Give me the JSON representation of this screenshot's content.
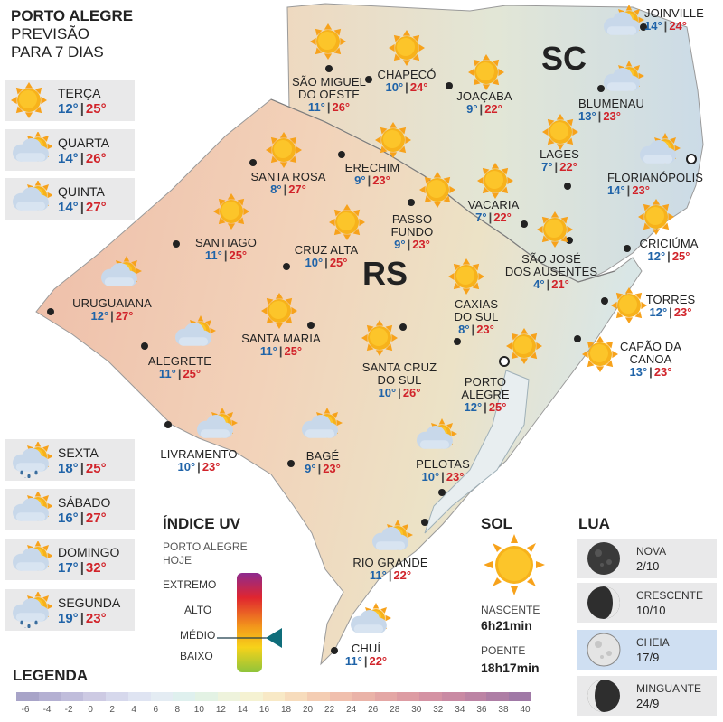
{
  "header": {
    "line1": "PORTO ALEGRE",
    "line2": "PREVISÃO",
    "line3": "PARA 7 DIAS"
  },
  "map_labels": {
    "state_rs": "RS",
    "state_sc": "SC"
  },
  "forecast": [
    {
      "day": "TERÇA",
      "min": "12°",
      "max": "25°",
      "icon": "sun"
    },
    {
      "day": "QUARTA",
      "min": "14°",
      "max": "26°",
      "icon": "sun-cloud"
    },
    {
      "day": "QUINTA",
      "min": "14°",
      "max": "27°",
      "icon": "sun-cloud"
    },
    {
      "day": "SEXTA",
      "min": "18°",
      "max": "25°",
      "icon": "sun-cloud-rain"
    },
    {
      "day": "SÁBADO",
      "min": "16°",
      "max": "27°",
      "icon": "sun-cloud"
    },
    {
      "day": "DOMINGO",
      "min": "17°",
      "max": "32°",
      "icon": "sun-cloud"
    },
    {
      "day": "SEGUNDA",
      "min": "19°",
      "max": "23°",
      "icon": "sun-cloud-rain"
    }
  ],
  "cities": [
    {
      "name": "JOINVILLE",
      "min": "14°",
      "max": "24°",
      "icon": "sun-cloud"
    },
    {
      "name": "BLUMENAU",
      "min": "13°",
      "max": "23°",
      "icon": "sun-cloud"
    },
    {
      "name": "FLORIANÓPOLIS",
      "min": "14°",
      "max": "23°",
      "icon": "sun-cloud"
    },
    {
      "name": "SÃO MIGUEL DO OESTE",
      "line1": "SÃO MIGUEL",
      "line2": "DO OESTE",
      "min": "11°",
      "max": "26°",
      "icon": "sun"
    },
    {
      "name": "CHAPECÓ",
      "min": "10°",
      "max": "24°",
      "icon": "sun"
    },
    {
      "name": "JOAÇABA",
      "min": "9°",
      "max": "22°",
      "icon": "sun"
    },
    {
      "name": "LAGES",
      "min": "7°",
      "max": "22°",
      "icon": "sun"
    },
    {
      "name": "SANTA ROSA",
      "min": "8°",
      "max": "27°",
      "icon": "sun"
    },
    {
      "name": "ERECHIM",
      "min": "9°",
      "max": "23°",
      "icon": "sun"
    },
    {
      "name": "VACARIA",
      "min": "7°",
      "max": "22°",
      "icon": "sun"
    },
    {
      "name": "PASSO FUNDO",
      "line1": "PASSO",
      "line2": "FUNDO",
      "min": "9°",
      "max": "23°",
      "icon": "sun"
    },
    {
      "name": "SANTIAGO",
      "min": "11°",
      "max": "25°",
      "icon": "sun"
    },
    {
      "name": "CRUZ ALTA",
      "min": "10°",
      "max": "25°",
      "icon": "sun"
    },
    {
      "name": "SÃO JOSÉ DOS AUSENTES",
      "line1": "SÃO JOSÉ",
      "line2": "DOS AUSENTES",
      "min": "4°",
      "max": "21°",
      "icon": "sun"
    },
    {
      "name": "CRICIÚMA",
      "min": "12°",
      "max": "25°",
      "icon": "sun"
    },
    {
      "name": "URUGUAIANA",
      "min": "12°",
      "max": "27°",
      "icon": "sun-cloud"
    },
    {
      "name": "CAXIAS DO SUL",
      "line1": "CAXIAS",
      "line2": "DO SUL",
      "min": "8°",
      "max": "23°",
      "icon": "sun"
    },
    {
      "name": "TORRES",
      "min": "12°",
      "max": "23°",
      "icon": "sun"
    },
    {
      "name": "SANTA MARIA",
      "min": "11°",
      "max": "25°",
      "icon": "sun"
    },
    {
      "name": "ALEGRETE",
      "min": "11°",
      "max": "25°",
      "icon": "sun-cloud"
    },
    {
      "name": "SANTA CRUZ DO SUL",
      "line1": "SANTA CRUZ",
      "line2": "DO SUL",
      "min": "10°",
      "max": "26°",
      "icon": "sun"
    },
    {
      "name": "PORTO ALEGRE",
      "line1": "PORTO",
      "line2": "ALEGRE",
      "min": "12°",
      "max": "25°",
      "icon": "sun"
    },
    {
      "name": "CAPÃO DA CANOA",
      "line1": "CAPÃO DA",
      "line2": "CANOA",
      "min": "13°",
      "max": "23°",
      "icon": "sun"
    },
    {
      "name": "LIVRAMENTO",
      "min": "10°",
      "max": "23°",
      "icon": "sun-cloud"
    },
    {
      "name": "BAGÉ",
      "min": "9°",
      "max": "23°",
      "icon": "sun-cloud"
    },
    {
      "name": "PELOTAS",
      "min": "10°",
      "max": "23°",
      "icon": "sun-cloud"
    },
    {
      "name": "RIO GRANDE",
      "min": "11°",
      "max": "22°",
      "icon": "sun-cloud"
    },
    {
      "name": "CHUÍ",
      "min": "11°",
      "max": "22°",
      "icon": "sun-cloud"
    }
  ],
  "uv": {
    "title": "ÍNDICE UV",
    "subtitle1": "PORTO ALEGRE",
    "subtitle2": "HOJE",
    "levels": [
      "EXTREMO",
      "ALTO",
      "MÉDIO",
      "BAIXO"
    ],
    "current_level": "MÉDIO"
  },
  "sun": {
    "title": "SOL",
    "sunrise_label": "NASCENTE",
    "sunrise_value": "6h21min",
    "sunset_label": "POENTE",
    "sunset_value": "18h17min"
  },
  "moon": {
    "title": "LUA",
    "phases": [
      {
        "name": "NOVA",
        "date": "2/10",
        "phase": "new",
        "highlighted": false
      },
      {
        "name": "CRESCENTE",
        "date": "10/10",
        "phase": "first",
        "highlighted": false
      },
      {
        "name": "CHEIA",
        "date": "17/9",
        "phase": "full",
        "highlighted": true
      },
      {
        "name": "MINGUANTE",
        "date": "24/9",
        "phase": "last",
        "highlighted": false
      }
    ]
  },
  "legend": {
    "title": "LEGENDA",
    "ticks": [
      "-6",
      "-4",
      "-2",
      "0",
      "2",
      "4",
      "6",
      "8",
      "10",
      "12",
      "14",
      "16",
      "18",
      "20",
      "22",
      "24",
      "26",
      "28",
      "30",
      "32",
      "34",
      "36",
      "38",
      "40"
    ],
    "colors": [
      "#a8a4c8",
      "#b4b0d2",
      "#c0bddb",
      "#cdcae3",
      "#d6d8ec",
      "#dfe4f2",
      "#e4ecf3",
      "#dff0ee",
      "#e3f2e4",
      "#eef3dc",
      "#f5f2d2",
      "#f8e9c6",
      "#f7dcbc",
      "#f4cdb3",
      "#f0bfad",
      "#eab3a8",
      "#e4a7a5",
      "#dd9ca3",
      "#d492a3",
      "#c98aa3",
      "#bc84a4",
      "#ae7ea5",
      "#a079a6"
    ]
  },
  "colors": {
    "min_temp": "#1f63a8",
    "max_temp": "#d1232a",
    "panel_bg": "#e9e9ea",
    "highlight_bg": "#cfdff2"
  }
}
